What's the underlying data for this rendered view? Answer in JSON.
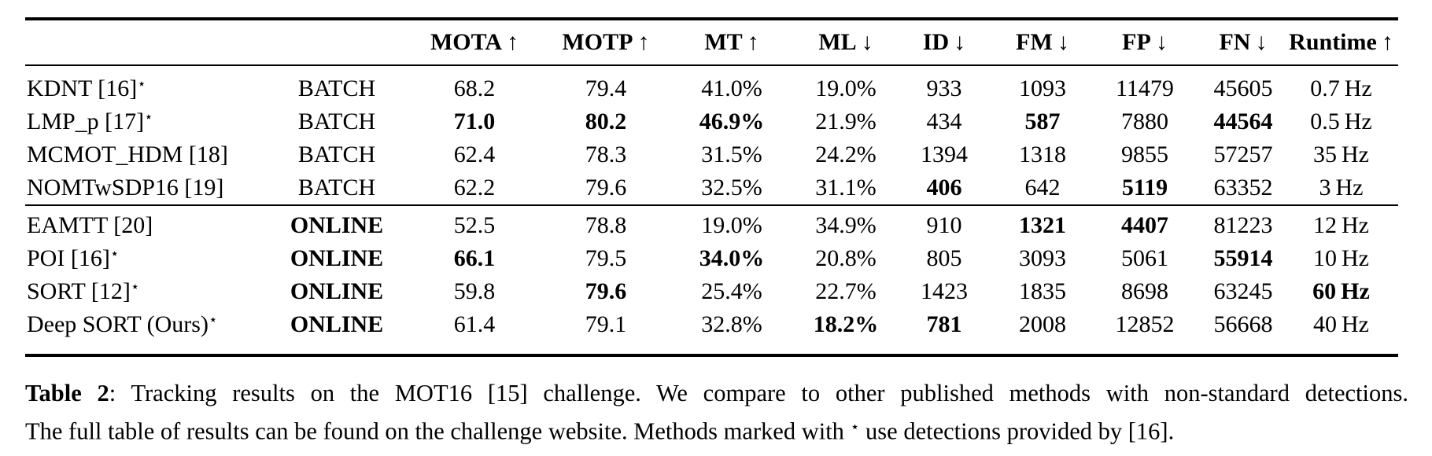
{
  "table": {
    "star_symbol": "⋆",
    "columns": [
      {
        "label": "MOTA",
        "arrow": "↑"
      },
      {
        "label": "MOTP",
        "arrow": "↑"
      },
      {
        "label": "MT",
        "arrow": "↑"
      },
      {
        "label": "ML",
        "arrow": "↓"
      },
      {
        "label": "ID",
        "arrow": "↓"
      },
      {
        "label": "FM",
        "arrow": "↓"
      },
      {
        "label": "FP",
        "arrow": "↓"
      },
      {
        "label": "FN",
        "arrow": "↓"
      },
      {
        "label": "Runtime",
        "arrow": "↑"
      }
    ],
    "sections": [
      {
        "name": "batch",
        "rows": [
          {
            "method": "KDNT [16]",
            "star": true,
            "mode": "BATCH",
            "mode_bold": false,
            "values": [
              "68.2",
              "79.4",
              "41.0%",
              "19.0%",
              "933",
              "1093",
              "11479",
              "45605",
              "0.7 Hz"
            ],
            "bold": []
          },
          {
            "method": "LMP_p [17]",
            "star": true,
            "mode": "BATCH",
            "mode_bold": false,
            "values": [
              "71.0",
              "80.2",
              "46.9%",
              "21.9%",
              "434",
              "587",
              "7880",
              "44564",
              "0.5 Hz"
            ],
            "bold": [
              0,
              1,
              2,
              5,
              7
            ]
          },
          {
            "method": "MCMOT_HDM [18]",
            "star": false,
            "mode": "BATCH",
            "mode_bold": false,
            "values": [
              "62.4",
              "78.3",
              "31.5%",
              "24.2%",
              "1394",
              "1318",
              "9855",
              "57257",
              "35 Hz"
            ],
            "bold": []
          },
          {
            "method": "NOMTwSDP16 [19]",
            "star": false,
            "mode": "BATCH",
            "mode_bold": false,
            "values": [
              "62.2",
              "79.6",
              "32.5%",
              "31.1%",
              "406",
              "642",
              "5119",
              "63352",
              "3 Hz"
            ],
            "bold": [
              4,
              6
            ]
          }
        ]
      },
      {
        "name": "online",
        "rows": [
          {
            "method": "EAMTT [20]",
            "star": false,
            "mode": "ONLINE",
            "mode_bold": true,
            "values": [
              "52.5",
              "78.8",
              "19.0%",
              "34.9%",
              "910",
              "1321",
              "4407",
              "81223",
              "12 Hz"
            ],
            "bold": [
              5,
              6
            ]
          },
          {
            "method": "POI [16]",
            "star": true,
            "mode": "ONLINE",
            "mode_bold": true,
            "values": [
              "66.1",
              "79.5",
              "34.0%",
              "20.8%",
              "805",
              "3093",
              "5061",
              "55914",
              "10 Hz"
            ],
            "bold": [
              0,
              2,
              7
            ]
          },
          {
            "method": "SORT [12]",
            "star": true,
            "mode": "ONLINE",
            "mode_bold": true,
            "values": [
              "59.8",
              "79.6",
              "25.4%",
              "22.7%",
              "1423",
              "1835",
              "8698",
              "63245",
              "60 Hz"
            ],
            "bold": [
              1,
              8
            ]
          },
          {
            "method": "Deep SORT (Ours)",
            "star": true,
            "mode": "ONLINE",
            "mode_bold": true,
            "values": [
              "61.4",
              "79.1",
              "32.8%",
              "18.2%",
              "781",
              "2008",
              "12852",
              "56668",
              "40 Hz"
            ],
            "bold": [
              3,
              4
            ]
          }
        ]
      }
    ]
  },
  "caption": {
    "label": "Table 2",
    "colon": ": ",
    "line1": "Tracking results on the MOT16 [15] challenge. We compare to other published methods with non-standard detections.",
    "line2_pre": "The full table of results can be found on the challenge website. Methods marked with ",
    "star": "⋆",
    "line2_post": " use detections provided by [16]."
  }
}
